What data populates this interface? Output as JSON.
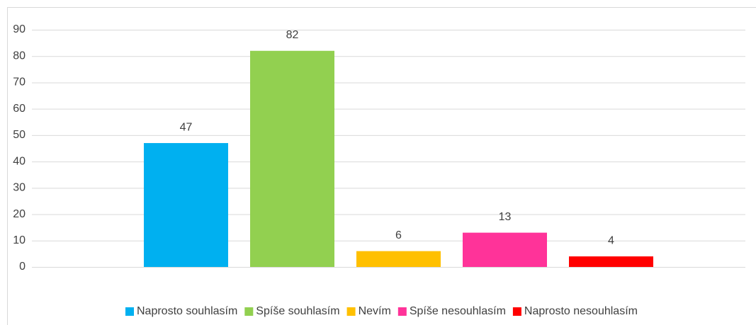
{
  "chart_data": {
    "type": "bar",
    "categories": [
      null
    ],
    "series": [
      {
        "name": "Naprosto souhlasím",
        "color": "#00b0f0",
        "values": [
          47
        ]
      },
      {
        "name": "Spíše souhlasím",
        "color": "#92d050",
        "values": [
          82
        ]
      },
      {
        "name": "Nevím",
        "color": "#ffc000",
        "values": [
          6
        ]
      },
      {
        "name": "Spíše nesouhlasím",
        "color": "#ff3399",
        "values": [
          13
        ]
      },
      {
        "name": "Naprosto nesouhlasím",
        "color": "#ff0000",
        "values": [
          4
        ]
      }
    ],
    "ylim": [
      0,
      90
    ],
    "yticks": [
      0,
      10,
      20,
      30,
      40,
      50,
      60,
      70,
      80,
      90
    ],
    "grid": true,
    "legend": "bottom",
    "data_labels": true
  }
}
